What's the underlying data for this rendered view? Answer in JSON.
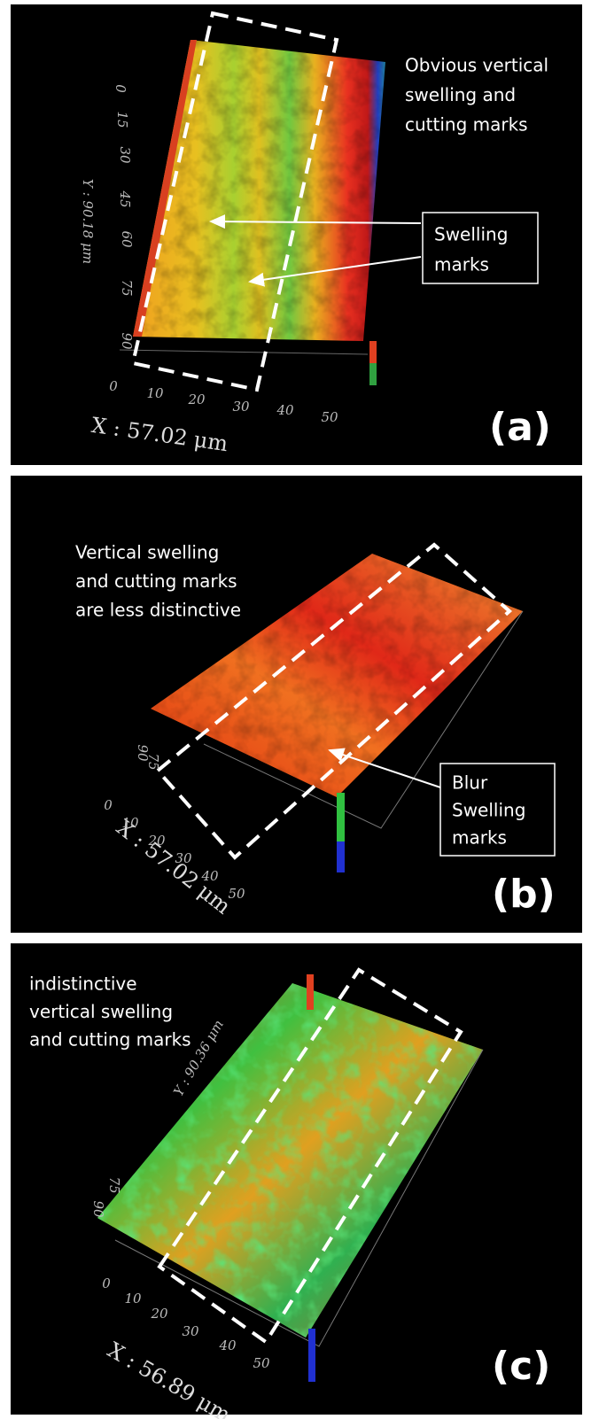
{
  "panels": [
    {
      "annotation": [
        "Obvious vertical",
        "swelling and",
        "cutting marks"
      ],
      "callout": [
        "Swelling",
        "marks"
      ],
      "x_axis_title": "X : 57.02 μm",
      "x_ticks": [
        0,
        10,
        20,
        30,
        40,
        50
      ],
      "y_axis_title": "Y : 90.18 μm",
      "y_ticks": [
        0,
        15,
        30,
        45,
        60,
        75,
        90
      ],
      "label": "(a)"
    },
    {
      "annotation": [
        "Vertical swelling",
        "and cutting marks",
        "are less distinctive"
      ],
      "callout": [
        "Blur",
        "Swelling",
        "marks"
      ],
      "x_axis_title": "X : 57.02 μm",
      "x_ticks": [
        0,
        10,
        20,
        30,
        40,
        50
      ],
      "y_ticks": [
        90,
        75
      ],
      "label": "(b)"
    },
    {
      "annotation": [
        "indistinctive",
        "vertical swelling",
        "and cutting marks"
      ],
      "x_axis_title": "X : 56.89 μm",
      "x_ticks": [
        0,
        10,
        20,
        30,
        40,
        50
      ],
      "y_axis_title": "Y : 90.36 μm",
      "y_ticks": [
        90,
        75
      ],
      "label": "(c)"
    }
  ]
}
